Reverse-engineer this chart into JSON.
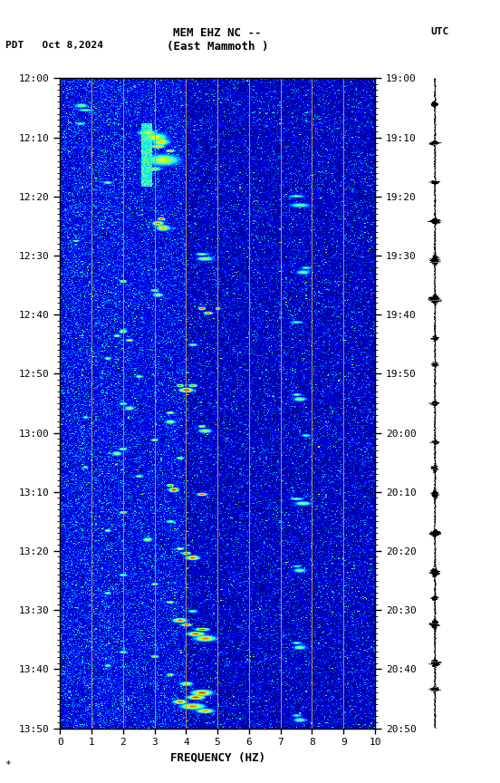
{
  "title_line1": "MEM EHZ NC --",
  "title_line2": "(East Mammoth )",
  "left_label": "PDT   Oct 8,2024",
  "right_label": "UTC",
  "xlabel": "FREQUENCY (HZ)",
  "freq_min": 0,
  "freq_max": 10,
  "freq_ticks": [
    0,
    1,
    2,
    3,
    4,
    5,
    6,
    7,
    8,
    9,
    10
  ],
  "time_left_labels": [
    "12:00",
    "12:10",
    "12:20",
    "12:30",
    "12:40",
    "12:50",
    "13:00",
    "13:10",
    "13:20",
    "13:30",
    "13:40",
    "13:50"
  ],
  "time_right_labels": [
    "19:00",
    "19:10",
    "19:20",
    "19:30",
    "19:40",
    "19:50",
    "20:00",
    "20:10",
    "20:20",
    "20:30",
    "20:40",
    "20:50"
  ],
  "n_freq": 300,
  "n_time": 720,
  "vertical_lines_freq": [
    1,
    2,
    3,
    4,
    5,
    6,
    7,
    8,
    9
  ],
  "vertical_line_color": "#c8a040",
  "fig_width": 5.52,
  "fig_height": 8.64,
  "colormap": "jet",
  "vmin": 0,
  "vmax": 1.0
}
